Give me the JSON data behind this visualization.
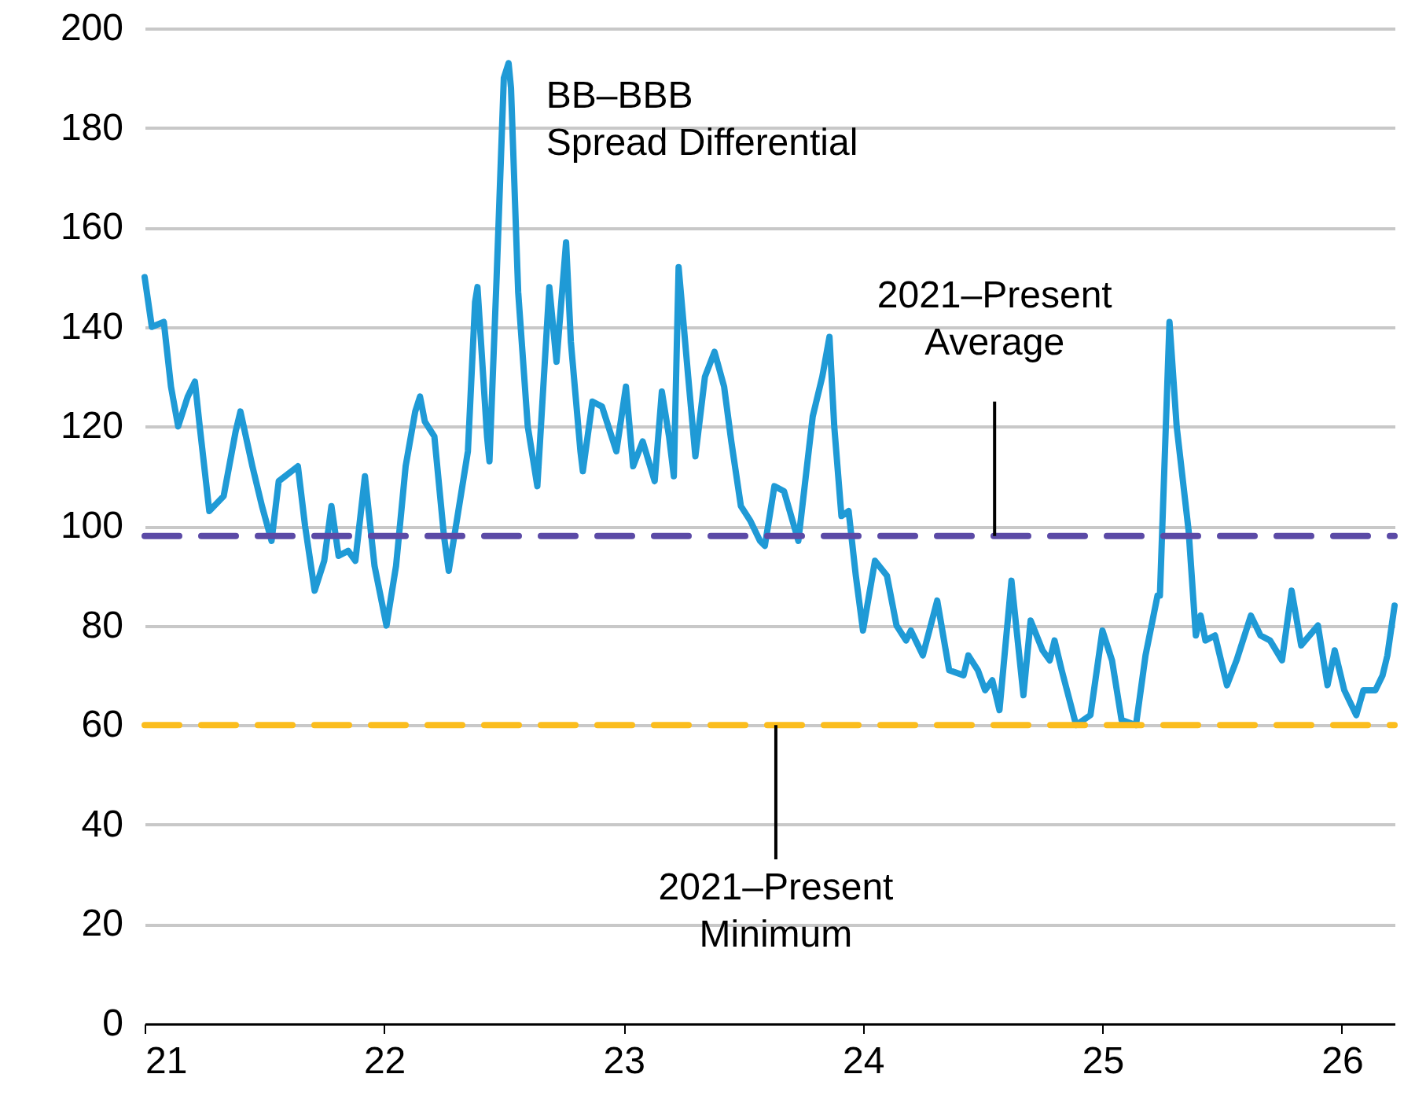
{
  "chart_data": {
    "type": "line",
    "xlim": [
      21,
      26.22
    ],
    "xticks": [
      21,
      22,
      23,
      24,
      25,
      26
    ],
    "ylim": [
      0,
      200
    ],
    "yticks": [
      0,
      20,
      40,
      60,
      80,
      100,
      120,
      140,
      160,
      180,
      200
    ],
    "grid": "y",
    "marker": "none",
    "line_style": "solid",
    "series": [
      {
        "name": "BB–BBB Spread Differential",
        "color": "#1f9ad6",
        "x": [
          21.0,
          21.03,
          21.08,
          21.11,
          21.14,
          21.18,
          21.21,
          21.23,
          21.27,
          21.33,
          21.38,
          21.4,
          21.45,
          21.49,
          21.53,
          21.56,
          21.64,
          21.67,
          21.71,
          21.75,
          21.78,
          21.81,
          21.85,
          21.88,
          21.92,
          21.96,
          22.01,
          22.05,
          22.09,
          22.13,
          22.15,
          22.17,
          22.21,
          22.25,
          22.27,
          22.31,
          22.35,
          22.38,
          22.39,
          22.43,
          22.44,
          22.47,
          22.5,
          22.52,
          22.53,
          22.56,
          22.6,
          22.64,
          22.69,
          22.72,
          22.76,
          22.78,
          22.82,
          22.83,
          22.87,
          22.91,
          22.97,
          23.01,
          23.04,
          23.08,
          23.13,
          23.16,
          23.19,
          23.21,
          23.23,
          23.27,
          23.3,
          23.34,
          23.38,
          23.42,
          23.45,
          23.49,
          23.53,
          23.57,
          23.59,
          23.63,
          23.67,
          23.73,
          23.79,
          23.83,
          23.86,
          23.88,
          23.91,
          23.94,
          23.97,
          24.0,
          24.05,
          24.1,
          24.14,
          24.18,
          24.2,
          24.25,
          24.31,
          24.36,
          24.42,
          24.44,
          24.48,
          24.51,
          24.54,
          24.57,
          24.62,
          24.67,
          24.7,
          24.75,
          24.78,
          24.8,
          24.83,
          24.89,
          24.95,
          25.0,
          25.04,
          25.08,
          25.14,
          25.18,
          25.23,
          25.24,
          25.28,
          25.31,
          25.36,
          25.39,
          25.41,
          25.43,
          25.47,
          25.52,
          25.56,
          25.62,
          25.66,
          25.7,
          25.75,
          25.79,
          25.83,
          25.9,
          25.94,
          25.97,
          26.01,
          26.06,
          26.09,
          26.14,
          26.17,
          26.19,
          26.22
        ],
        "values": [
          150,
          140,
          141,
          128,
          120,
          126,
          129,
          120,
          103,
          106,
          119,
          123,
          112,
          104,
          97,
          109,
          112,
          100,
          87,
          93,
          104,
          94,
          95,
          93,
          110,
          92,
          80,
          92,
          112,
          123,
          126,
          121,
          118,
          98,
          91,
          103,
          115,
          145,
          148,
          118,
          113,
          150,
          190,
          193,
          188,
          147,
          120,
          108,
          148,
          133,
          157,
          137,
          115,
          111,
          125,
          124,
          115,
          128,
          112,
          117,
          109,
          127,
          118,
          110,
          152,
          130,
          114,
          130,
          135,
          128,
          117,
          104,
          101,
          97,
          96,
          108,
          107,
          97,
          122,
          130,
          138,
          120,
          102,
          103,
          90,
          79,
          93,
          90,
          80,
          77,
          79,
          74,
          85,
          71,
          70,
          74,
          71,
          67,
          69,
          63,
          89,
          66,
          81,
          75,
          73,
          77,
          71,
          60,
          62,
          79,
          73,
          61,
          60,
          74,
          86,
          86,
          141,
          120,
          99,
          78,
          82,
          77,
          78,
          68,
          73,
          82,
          78,
          77,
          73,
          87,
          76,
          80,
          68,
          75,
          67,
          62,
          67,
          67,
          70,
          74,
          84
        ]
      }
    ],
    "ref_lines": [
      {
        "axis": "y",
        "value": 98,
        "label": "2021–Present Average",
        "color": "#5b4aa6",
        "line_style": "dashed"
      },
      {
        "axis": "y",
        "value": 60,
        "label": "2021–Present Minimum",
        "color": "#fbbd1e",
        "line_style": "dashed"
      }
    ]
  }
}
